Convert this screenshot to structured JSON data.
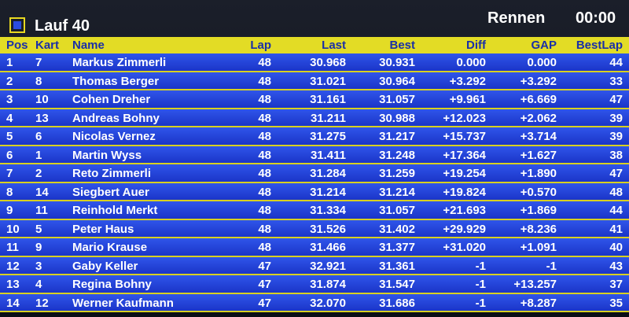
{
  "header": {
    "title": "Lauf 40",
    "mode": "Rennen",
    "time": "00:00"
  },
  "table": {
    "columns": [
      "Pos",
      "Kart",
      "Name",
      "Lap",
      "Last",
      "Best",
      "Diff",
      "GAP",
      "BestLap"
    ],
    "rows": [
      [
        "1",
        "7",
        "Markus Zimmerli",
        "48",
        "30.968",
        "30.931",
        "0.000",
        "0.000",
        "44"
      ],
      [
        "2",
        "8",
        "Thomas Berger",
        "48",
        "31.021",
        "30.964",
        "+3.292",
        "+3.292",
        "33"
      ],
      [
        "3",
        "10",
        "Cohen Dreher",
        "48",
        "31.161",
        "31.057",
        "+9.961",
        "+6.669",
        "47"
      ],
      [
        "4",
        "13",
        "Andreas Bohny",
        "48",
        "31.211",
        "30.988",
        "+12.023",
        "+2.062",
        "39"
      ],
      [
        "5",
        "6",
        "Nicolas Vernez",
        "48",
        "31.275",
        "31.217",
        "+15.737",
        "+3.714",
        "39"
      ],
      [
        "6",
        "1",
        "Martin Wyss",
        "48",
        "31.411",
        "31.248",
        "+17.364",
        "+1.627",
        "38"
      ],
      [
        "7",
        "2",
        "Reto Zimmerli",
        "48",
        "31.284",
        "31.259",
        "+19.254",
        "+1.890",
        "47"
      ],
      [
        "8",
        "14",
        "Siegbert Auer",
        "48",
        "31.214",
        "31.214",
        "+19.824",
        "+0.570",
        "48"
      ],
      [
        "9",
        "11",
        "Reinhold Merkt",
        "48",
        "31.334",
        "31.057",
        "+21.693",
        "+1.869",
        "44"
      ],
      [
        "10",
        "5",
        "Peter Haus",
        "48",
        "31.526",
        "31.402",
        "+29.929",
        "+8.236",
        "41"
      ],
      [
        "11",
        "9",
        "Mario Krause",
        "48",
        "31.466",
        "31.377",
        "+31.020",
        "+1.091",
        "40"
      ],
      [
        "12",
        "3",
        "Gaby Keller",
        "47",
        "32.921",
        "31.361",
        "-1",
        "-1",
        "43"
      ],
      [
        "13",
        "4",
        "Regina Bohny",
        "47",
        "31.874",
        "31.547",
        "-1",
        "+13.257",
        "37"
      ],
      [
        "14",
        "12",
        "Werner Kaufmann",
        "47",
        "32.070",
        "31.686",
        "-1",
        "+8.287",
        "35"
      ]
    ]
  }
}
